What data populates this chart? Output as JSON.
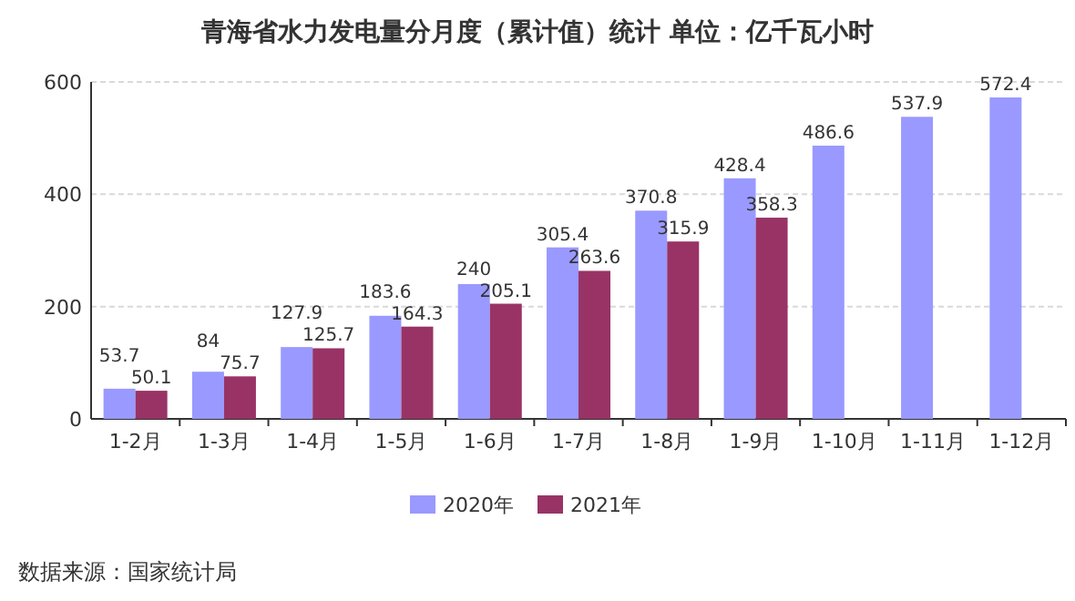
{
  "chart_data": {
    "type": "bar",
    "title": "青海省水力发电量分月度（累计值）统计  单位：亿千瓦小时",
    "categories": [
      "1-2月",
      "1-3月",
      "1-4月",
      "1-5月",
      "1-6月",
      "1-7月",
      "1-8月",
      "1-9月",
      "1-10月",
      "1-11月",
      "1-12月"
    ],
    "series": [
      {
        "name": "2020年",
        "color": "#9999ff",
        "values": [
          53.7,
          84,
          127.9,
          183.6,
          240,
          305.4,
          370.8,
          428.4,
          486.6,
          537.9,
          572.4
        ]
      },
      {
        "name": "2021年",
        "color": "#993366",
        "values": [
          50.1,
          75.7,
          125.7,
          164.3,
          205.1,
          263.6,
          315.9,
          358.3,
          null,
          null,
          null
        ]
      }
    ],
    "ylim": [
      0,
      600
    ],
    "yticks": [
      0,
      200,
      400,
      600
    ],
    "grid": "y",
    "legend": "bottom",
    "data_labels": true,
    "annotations": [
      "数据来源：国家统计局"
    ]
  }
}
